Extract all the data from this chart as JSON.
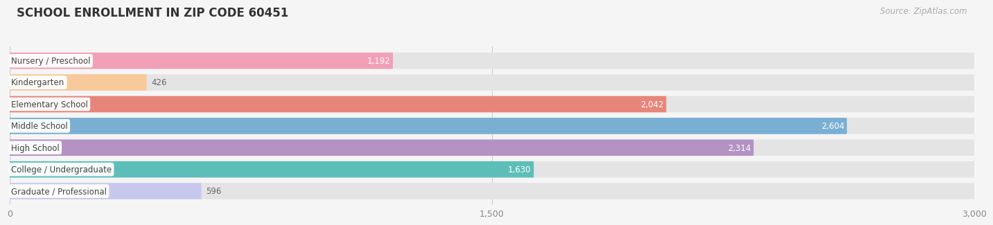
{
  "title": "SCHOOL ENROLLMENT IN ZIP CODE 60451",
  "source": "Source: ZipAtlas.com",
  "categories": [
    "Nursery / Preschool",
    "Kindergarten",
    "Elementary School",
    "Middle School",
    "High School",
    "College / Undergraduate",
    "Graduate / Professional"
  ],
  "values": [
    1192,
    426,
    2042,
    2604,
    2314,
    1630,
    596
  ],
  "bar_colors": [
    "#f2a0b8",
    "#f8c99a",
    "#e8857a",
    "#7aafd4",
    "#b492c4",
    "#5dbdb8",
    "#c8c8ee"
  ],
  "background_color": "#f5f5f5",
  "bar_bg_color": "#e4e4e4",
  "xlim": [
    0,
    3000
  ],
  "xticks": [
    0,
    1500,
    3000
  ],
  "title_fontsize": 12,
  "source_fontsize": 8.5,
  "label_fontsize": 8.5,
  "value_fontsize": 8.5
}
